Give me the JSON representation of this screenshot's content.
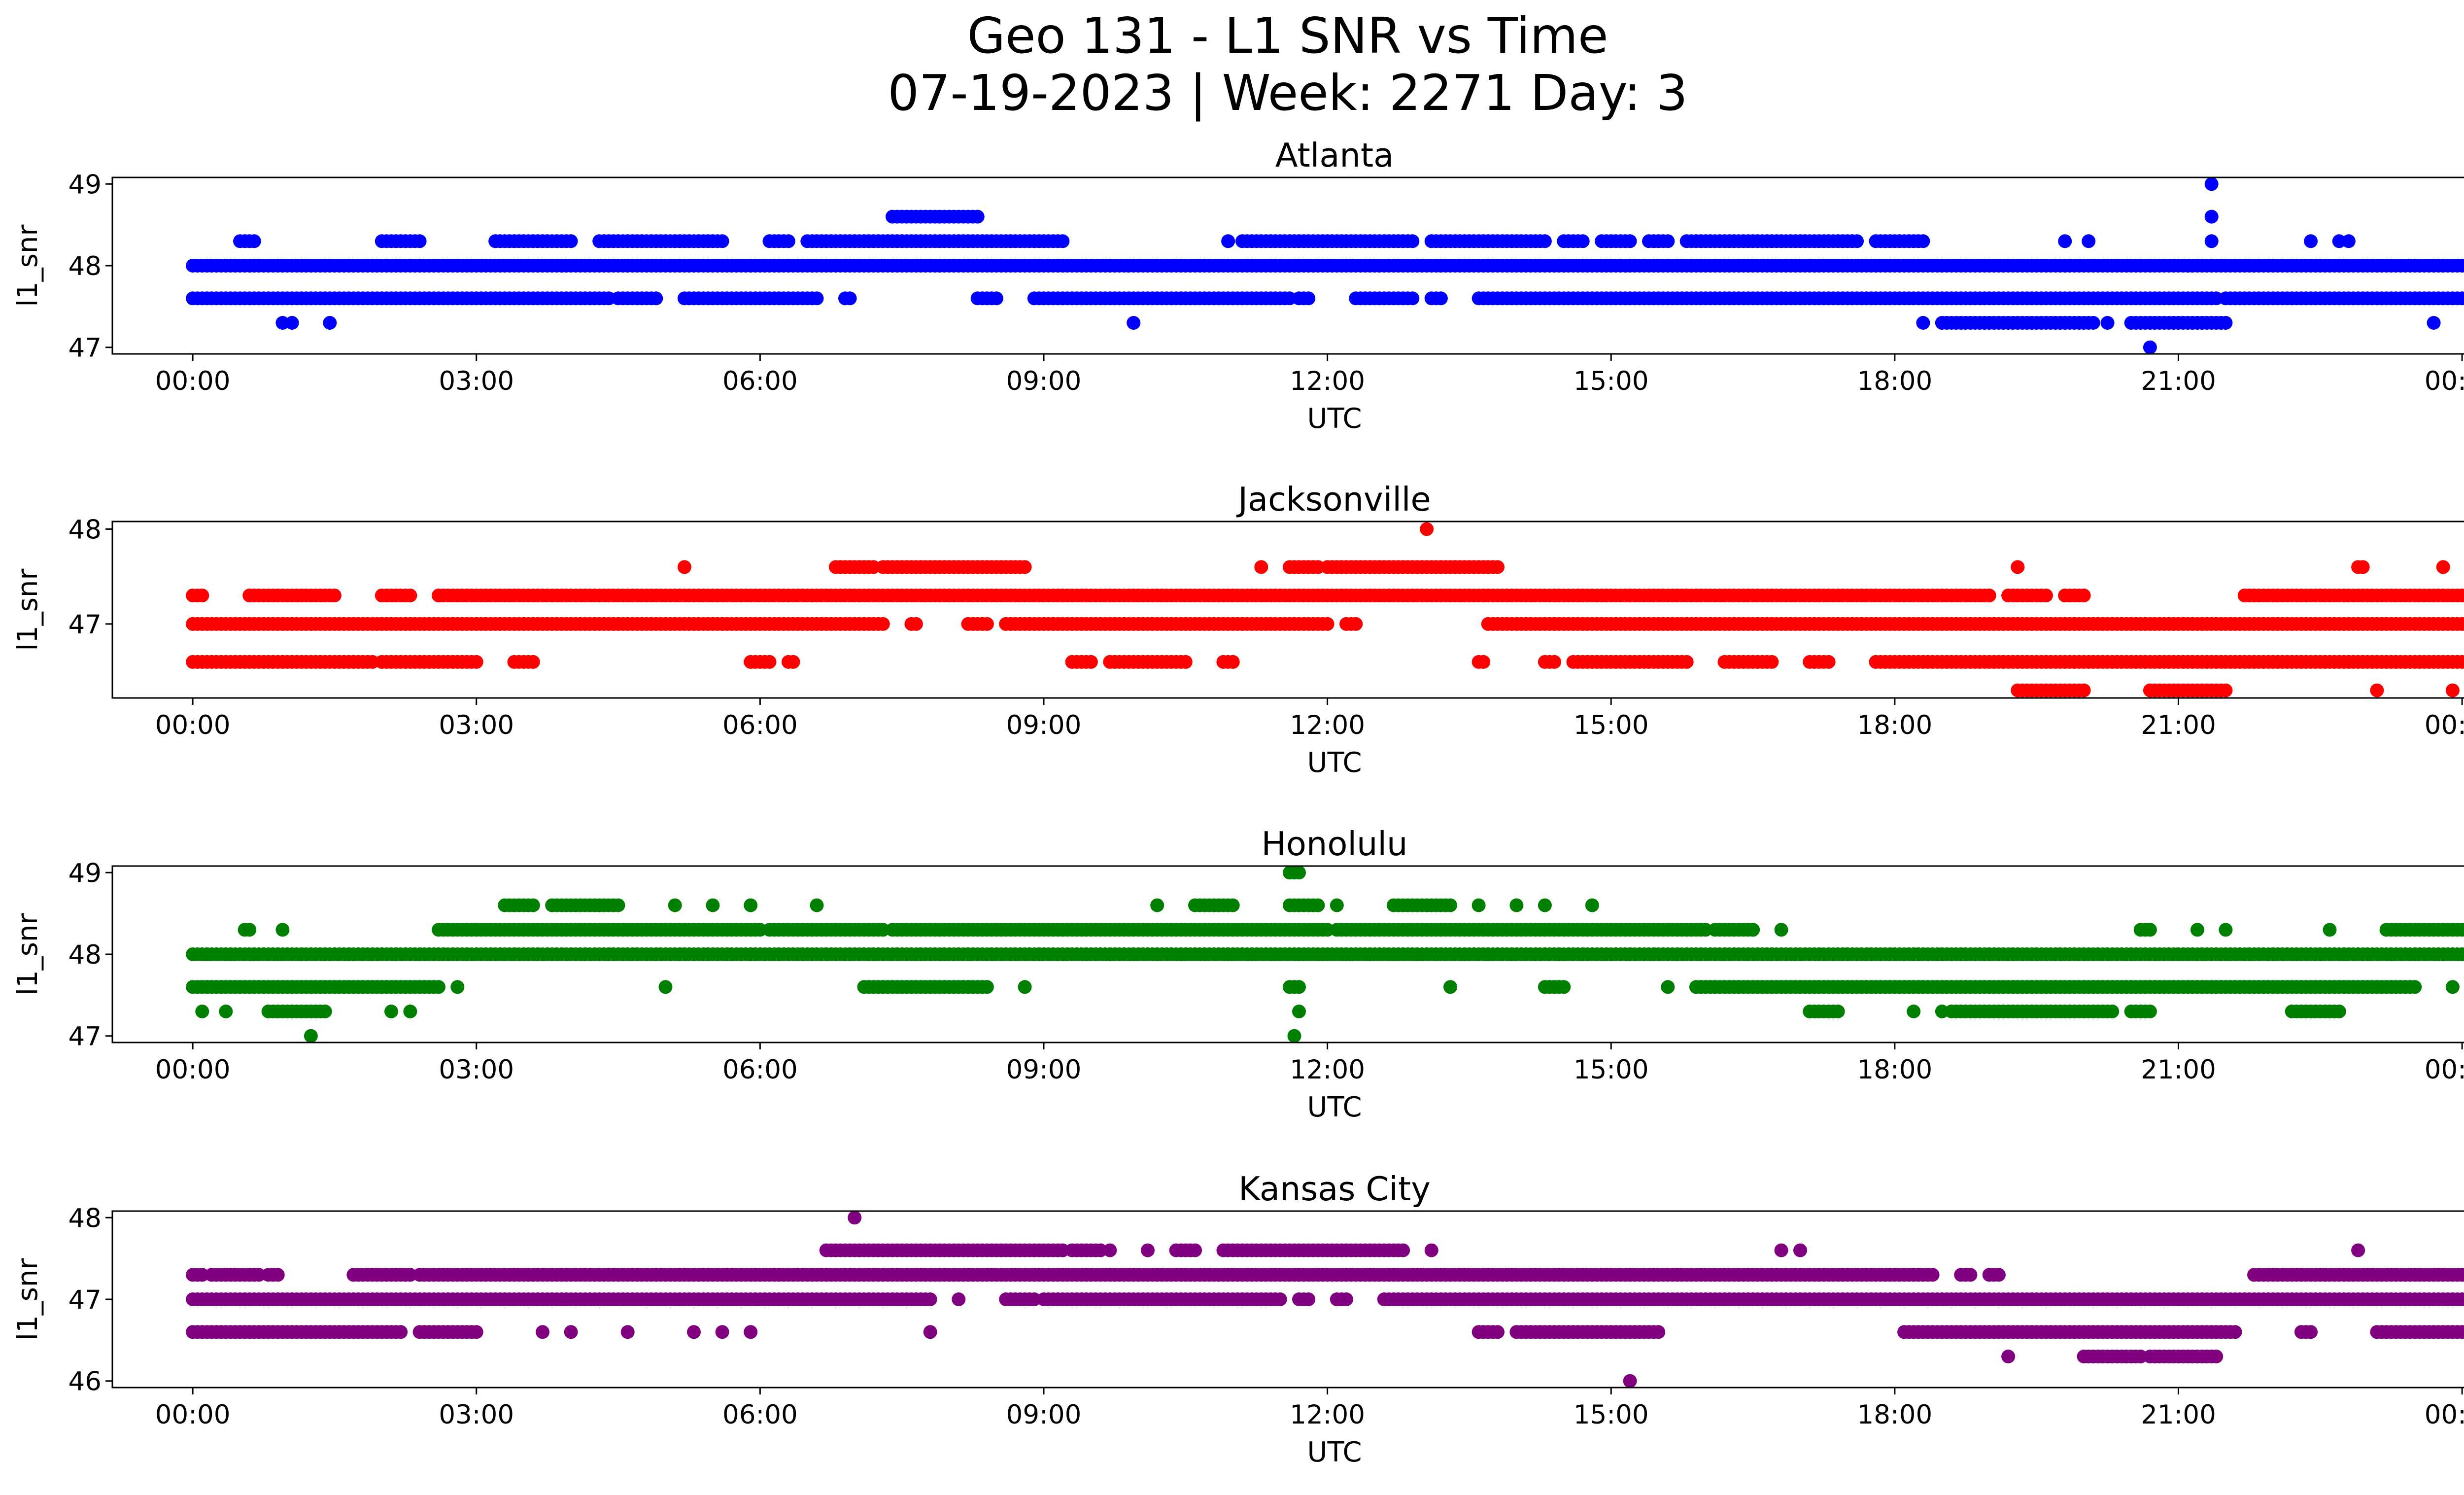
{
  "figure": {
    "title_line1": "Geo 131 - L1 SNR vs Time",
    "title_line2": "07-19-2023 | Week: 2271 Day: 3"
  },
  "chart_data": [
    {
      "type": "scatter",
      "title": "Atlanta",
      "xlabel": "UTC",
      "ylabel": "l1_snr",
      "color": "#0000ff",
      "xlim": [
        -0.85,
        25.0
      ],
      "ylim": [
        46.92,
        49.08
      ],
      "xticks": [
        0,
        3,
        6,
        9,
        12,
        15,
        18,
        21,
        24
      ],
      "xtick_labels": [
        "00:00",
        "03:00",
        "06:00",
        "09:00",
        "12:00",
        "15:00",
        "18:00",
        "21:00",
        "00:00"
      ],
      "yticks": [
        47,
        48,
        49
      ],
      "ytick_labels": [
        "47",
        "48",
        "49"
      ],
      "x_unit": "hours UTC",
      "series": [
        {
          "y": 48.0,
          "segments": [
            [
              0.0,
              24.0
            ]
          ]
        },
        {
          "y": 47.6,
          "segments": [
            [
              0.0,
              4.4
            ],
            [
              4.5,
              4.9
            ],
            [
              5.2,
              6.6
            ],
            [
              6.9,
              6.95
            ],
            [
              8.3,
              8.5
            ],
            [
              8.9,
              11.6
            ],
            [
              11.7,
              11.8
            ],
            [
              12.3,
              12.9
            ],
            [
              13.1,
              13.2
            ],
            [
              13.6,
              21.4
            ],
            [
              21.5,
              24.0
            ]
          ]
        },
        {
          "y": 48.3,
          "segments": [
            [
              0.5,
              0.65
            ],
            [
              2.0,
              2.4
            ],
            [
              3.2,
              4.0
            ],
            [
              4.3,
              5.6
            ],
            [
              6.1,
              6.3
            ],
            [
              6.5,
              9.2
            ],
            [
              11.1,
              12.9
            ],
            [
              13.1,
              14.3
            ],
            [
              14.5,
              14.7
            ],
            [
              14.9,
              15.2
            ],
            [
              15.4,
              15.6
            ],
            [
              15.8,
              17.6
            ],
            [
              17.8,
              18.3
            ]
          ]
        },
        {
          "y": 48.6,
          "segments": [
            [
              7.4,
              8.3
            ]
          ]
        },
        {
          "y": 47.3,
          "segments": [
            [
              18.5,
              20.1
            ],
            [
              20.5,
              21.5
            ]
          ]
        }
      ],
      "points": [
        {
          "x": 0.95,
          "y": 47.3
        },
        {
          "x": 1.05,
          "y": 47.3
        },
        {
          "x": 1.45,
          "y": 47.3
        },
        {
          "x": 9.95,
          "y": 47.3
        },
        {
          "x": 10.95,
          "y": 48.3
        },
        {
          "x": 18.3,
          "y": 47.3
        },
        {
          "x": 19.8,
          "y": 48.3
        },
        {
          "x": 20.05,
          "y": 48.3
        },
        {
          "x": 20.25,
          "y": 47.3
        },
        {
          "x": 21.1,
          "y": 48.0
        },
        {
          "x": 21.35,
          "y": 49.0
        },
        {
          "x": 21.35,
          "y": 48.6
        },
        {
          "x": 21.35,
          "y": 48.3
        },
        {
          "x": 20.7,
          "y": 47.0
        },
        {
          "x": 22.4,
          "y": 48.3
        },
        {
          "x": 22.7,
          "y": 48.3
        },
        {
          "x": 22.8,
          "y": 48.3
        },
        {
          "x": 23.7,
          "y": 47.3
        }
      ]
    },
    {
      "type": "scatter",
      "title": "Jacksonville",
      "xlabel": "UTC",
      "ylabel": "l1_snr",
      "color": "#ff0000",
      "xlim": [
        -0.85,
        25.0
      ],
      "ylim": [
        46.22,
        48.08
      ],
      "xticks": [
        0,
        3,
        6,
        9,
        12,
        15,
        18,
        21,
        24
      ],
      "xtick_labels": [
        "00:00",
        "03:00",
        "06:00",
        "09:00",
        "12:00",
        "15:00",
        "18:00",
        "21:00",
        "00:00"
      ],
      "yticks": [
        47,
        48
      ],
      "ytick_labels": [
        "47",
        "48"
      ],
      "x_unit": "hours UTC",
      "series": [
        {
          "y": 47.0,
          "segments": [
            [
              0.0,
              7.3
            ],
            [
              7.6,
              7.65
            ],
            [
              8.2,
              8.4
            ],
            [
              8.6,
              12.0
            ],
            [
              12.2,
              12.3
            ],
            [
              13.7,
              24.0
            ]
          ]
        },
        {
          "y": 46.6,
          "segments": [
            [
              0.0,
              1.9
            ],
            [
              2.0,
              3.0
            ],
            [
              3.4,
              3.6
            ],
            [
              5.9,
              6.1
            ],
            [
              6.3,
              6.35
            ],
            [
              9.3,
              9.5
            ],
            [
              9.7,
              10.5
            ],
            [
              10.9,
              11.0
            ],
            [
              13.6,
              13.65
            ],
            [
              14.3,
              14.4
            ],
            [
              14.6,
              15.8
            ],
            [
              16.2,
              16.7
            ],
            [
              17.1,
              17.3
            ],
            [
              17.8,
              24.0
            ]
          ]
        },
        {
          "y": 47.3,
          "segments": [
            [
              0.0,
              0.1
            ],
            [
              0.6,
              1.5
            ],
            [
              2.0,
              2.3
            ],
            [
              2.6,
              19.0
            ],
            [
              19.2,
              19.6
            ],
            [
              19.8,
              20.0
            ],
            [
              21.7,
              24.0
            ]
          ]
        },
        {
          "y": 47.6,
          "segments": [
            [
              6.8,
              7.2
            ],
            [
              7.3,
              8.8
            ],
            [
              11.6,
              11.9
            ],
            [
              12.0,
              13.8
            ]
          ]
        },
        {
          "y": 46.3,
          "segments": [
            [
              19.3,
              20.0
            ],
            [
              20.7,
              21.5
            ]
          ]
        }
      ],
      "points": [
        {
          "x": 5.2,
          "y": 47.6
        },
        {
          "x": 11.3,
          "y": 47.6
        },
        {
          "x": 13.05,
          "y": 48.0
        },
        {
          "x": 19.3,
          "y": 47.6
        },
        {
          "x": 22.9,
          "y": 47.6
        },
        {
          "x": 22.95,
          "y": 47.6
        },
        {
          "x": 23.1,
          "y": 46.3
        },
        {
          "x": 23.8,
          "y": 47.6
        },
        {
          "x": 23.9,
          "y": 46.3
        }
      ]
    },
    {
      "type": "scatter",
      "title": "Honolulu",
      "xlabel": "UTC",
      "ylabel": "l1_snr",
      "color": "#008000",
      "xlim": [
        -0.85,
        25.0
      ],
      "ylim": [
        46.92,
        49.08
      ],
      "xticks": [
        0,
        3,
        6,
        9,
        12,
        15,
        18,
        21,
        24
      ],
      "xtick_labels": [
        "00:00",
        "03:00",
        "06:00",
        "09:00",
        "12:00",
        "15:00",
        "18:00",
        "21:00",
        "00:00"
      ],
      "yticks": [
        47,
        48,
        49
      ],
      "ytick_labels": [
        "47",
        "48",
        "49"
      ],
      "x_unit": "hours UTC",
      "series": [
        {
          "y": 48.0,
          "segments": [
            [
              0.0,
              24.0
            ]
          ]
        },
        {
          "y": 47.6,
          "segments": [
            [
              0.0,
              2.6
            ],
            [
              7.1,
              8.4
            ],
            [
              11.6,
              11.7
            ],
            [
              14.3,
              14.5
            ],
            [
              15.9,
              23.5
            ]
          ]
        },
        {
          "y": 48.3,
          "segments": [
            [
              2.6,
              6.0
            ],
            [
              6.1,
              7.3
            ],
            [
              7.4,
              12.0
            ],
            [
              12.1,
              16.0
            ],
            [
              16.1,
              16.5
            ],
            [
              20.6,
              20.7
            ],
            [
              23.2,
              24.0
            ]
          ]
        },
        {
          "y": 48.6,
          "segments": [
            [
              3.3,
              3.6
            ],
            [
              3.8,
              4.5
            ],
            [
              10.6,
              11.0
            ],
            [
              11.6,
              11.9
            ],
            [
              12.7,
              13.3
            ]
          ]
        },
        {
          "y": 47.3,
          "segments": [
            [
              0.8,
              1.4
            ],
            [
              17.1,
              17.4
            ],
            [
              18.6,
              20.3
            ],
            [
              20.5,
              20.7
            ],
            [
              22.2,
              22.7
            ]
          ]
        },
        {
          "y": 49.0,
          "segments": [
            [
              11.6,
              11.7
            ]
          ]
        }
      ],
      "points": [
        {
          "x": 0.1,
          "y": 47.3
        },
        {
          "x": 0.35,
          "y": 47.3
        },
        {
          "x": 0.55,
          "y": 48.3
        },
        {
          "x": 0.6,
          "y": 48.3
        },
        {
          "x": 0.95,
          "y": 48.3
        },
        {
          "x": 1.25,
          "y": 47.0
        },
        {
          "x": 2.1,
          "y": 47.3
        },
        {
          "x": 2.3,
          "y": 47.3
        },
        {
          "x": 2.8,
          "y": 47.6
        },
        {
          "x": 5.0,
          "y": 47.6
        },
        {
          "x": 5.1,
          "y": 48.6
        },
        {
          "x": 5.5,
          "y": 48.6
        },
        {
          "x": 5.9,
          "y": 48.6
        },
        {
          "x": 6.6,
          "y": 48.6
        },
        {
          "x": 8.8,
          "y": 47.6
        },
        {
          "x": 10.2,
          "y": 48.6
        },
        {
          "x": 11.7,
          "y": 47.3
        },
        {
          "x": 11.65,
          "y": 47.0
        },
        {
          "x": 12.1,
          "y": 48.6
        },
        {
          "x": 13.3,
          "y": 47.6
        },
        {
          "x": 13.6,
          "y": 48.6
        },
        {
          "x": 14.0,
          "y": 48.6
        },
        {
          "x": 14.3,
          "y": 48.6
        },
        {
          "x": 14.8,
          "y": 48.6
        },
        {
          "x": 15.6,
          "y": 47.6
        },
        {
          "x": 16.5,
          "y": 48.3
        },
        {
          "x": 16.8,
          "y": 48.3
        },
        {
          "x": 18.2,
          "y": 47.3
        },
        {
          "x": 18.5,
          "y": 47.3
        },
        {
          "x": 21.2,
          "y": 48.3
        },
        {
          "x": 21.5,
          "y": 48.3
        },
        {
          "x": 22.6,
          "y": 48.3
        },
        {
          "x": 23.9,
          "y": 47.6
        }
      ]
    },
    {
      "type": "scatter",
      "title": "Kansas City",
      "xlabel": "UTC",
      "ylabel": "l1_snr",
      "color": "#800080",
      "xlim": [
        -0.85,
        25.0
      ],
      "ylim": [
        45.92,
        48.08
      ],
      "xticks": [
        0,
        3,
        6,
        9,
        12,
        15,
        18,
        21,
        24
      ],
      "xtick_labels": [
        "00:00",
        "03:00",
        "06:00",
        "09:00",
        "12:00",
        "15:00",
        "18:00",
        "21:00",
        "00:00"
      ],
      "yticks": [
        46,
        47,
        48
      ],
      "ytick_labels": [
        "46",
        "47",
        "48"
      ],
      "x_unit": "hours UTC",
      "series": [
        {
          "y": 47.0,
          "segments": [
            [
              0.0,
              7.8
            ],
            [
              8.6,
              8.9
            ],
            [
              9.0,
              11.5
            ],
            [
              11.7,
              11.8
            ],
            [
              12.1,
              12.2
            ],
            [
              12.6,
              24.0
            ]
          ]
        },
        {
          "y": 46.6,
          "segments": [
            [
              0.0,
              2.2
            ],
            [
              2.4,
              3.0
            ],
            [
              13.6,
              13.8
            ],
            [
              14.0,
              15.5
            ],
            [
              18.1,
              21.6
            ],
            [
              22.3,
              22.4
            ],
            [
              23.1,
              24.0
            ]
          ]
        },
        {
          "y": 47.3,
          "segments": [
            [
              0.0,
              0.1
            ],
            [
              0.2,
              0.7
            ],
            [
              0.8,
              0.9
            ],
            [
              1.7,
              2.3
            ],
            [
              2.4,
              18.4
            ],
            [
              18.7,
              18.8
            ],
            [
              19.0,
              19.1
            ],
            [
              21.8,
              24.0
            ]
          ]
        },
        {
          "y": 47.6,
          "segments": [
            [
              6.7,
              9.2
            ],
            [
              9.3,
              9.6
            ],
            [
              10.4,
              10.6
            ],
            [
              10.9,
              12.8
            ]
          ]
        },
        {
          "y": 46.3,
          "segments": [
            [
              20.0,
              20.6
            ],
            [
              20.7,
              21.4
            ]
          ]
        }
      ],
      "points": [
        {
          "x": 3.7,
          "y": 46.6
        },
        {
          "x": 4.0,
          "y": 46.6
        },
        {
          "x": 4.6,
          "y": 46.6
        },
        {
          "x": 5.3,
          "y": 46.6
        },
        {
          "x": 5.6,
          "y": 46.6
        },
        {
          "x": 5.9,
          "y": 46.6
        },
        {
          "x": 7.0,
          "y": 48.0
        },
        {
          "x": 7.8,
          "y": 46.6
        },
        {
          "x": 8.1,
          "y": 47.0
        },
        {
          "x": 9.7,
          "y": 47.6
        },
        {
          "x": 10.1,
          "y": 47.6
        },
        {
          "x": 13.1,
          "y": 47.6
        },
        {
          "x": 15.2,
          "y": 46.0
        },
        {
          "x": 16.8,
          "y": 47.6
        },
        {
          "x": 17.0,
          "y": 47.6
        },
        {
          "x": 19.2,
          "y": 46.3
        },
        {
          "x": 22.9,
          "y": 47.6
        }
      ]
    }
  ]
}
